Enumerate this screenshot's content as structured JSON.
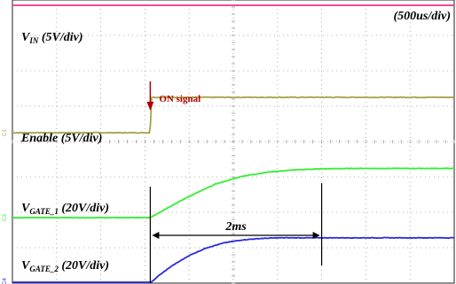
{
  "chart_data": {
    "type": "line",
    "time_scale": "(500us/div)",
    "channel_markers": [
      "C2",
      "C1",
      "C3",
      "C4"
    ],
    "time_divisions": 10,
    "time_per_div_ms": 0.5,
    "x_unit": "ms",
    "xlim": [
      0,
      5
    ],
    "series": [
      {
        "name": "V_IN (5V/div)",
        "name_main": "V",
        "name_sub": "IN",
        "name_rest": " (5V/div)",
        "color": "#e8318b",
        "level": 7.85,
        "points": [
          [
            0,
            0
          ],
          [
            5,
            0
          ]
        ]
      },
      {
        "name": "Enable (5V/div)",
        "name_main": "Enable (5V/div)",
        "name_sub": "",
        "name_rest": "",
        "color": "#a8a24a",
        "level": 4.25,
        "noise": 0.02,
        "points": [
          [
            0,
            0
          ],
          [
            1.56,
            0
          ],
          [
            1.57,
            1
          ],
          [
            5,
            1
          ]
        ]
      },
      {
        "name": "V_GATE_1 (20V/div)",
        "name_main": "V",
        "name_sub": "GATE_1",
        "name_rest": " (20V/div)",
        "color": "#33ee33",
        "level": 1.85,
        "noise": 0.015,
        "points": [
          [
            0,
            0
          ],
          [
            1.56,
            0
          ],
          [
            1.75,
            0.27
          ],
          [
            2.0,
            0.6
          ],
          [
            2.3,
            0.95
          ],
          [
            2.6,
            1.17
          ],
          [
            2.9,
            1.29
          ],
          [
            3.2,
            1.35
          ],
          [
            3.5,
            1.38
          ],
          [
            3.9,
            1.39
          ],
          [
            5,
            1.39
          ]
        ]
      },
      {
        "name": "V_GATE_2 (20V/div)",
        "name_main": "V",
        "name_sub": "GATE_2",
        "name_rest": " (20V/div)",
        "color": "#2b2bdc",
        "level": 0.0,
        "noise": 0.015,
        "points": [
          [
            0,
            0
          ],
          [
            1.56,
            0
          ],
          [
            1.65,
            0.2
          ],
          [
            1.8,
            0.48
          ],
          [
            2.0,
            0.78
          ],
          [
            2.2,
            1.0
          ],
          [
            2.4,
            1.14
          ],
          [
            2.6,
            1.22
          ],
          [
            2.8,
            1.26
          ],
          [
            3.0,
            1.28
          ],
          [
            5,
            1.28
          ]
        ]
      }
    ],
    "annotations": {
      "on_signal": "ON signal",
      "on_signal_x": 1.56,
      "duration_label": "2ms",
      "duration_start": 1.56,
      "duration_end": 3.5
    },
    "grid": true
  }
}
